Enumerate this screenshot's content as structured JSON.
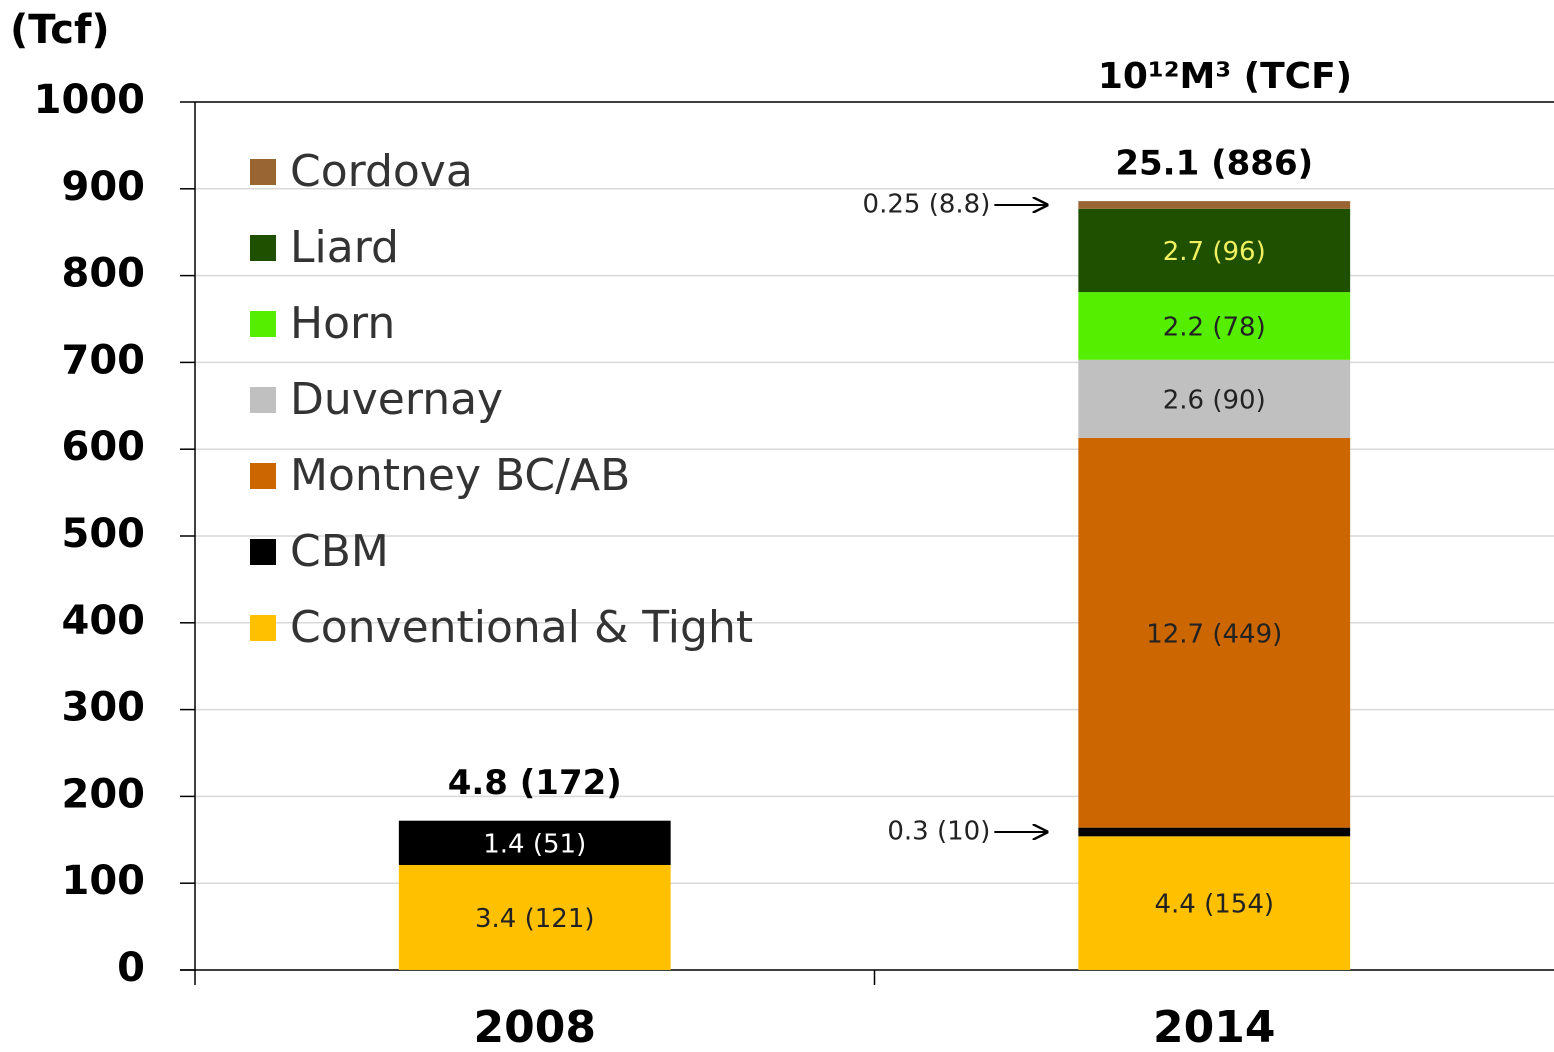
{
  "chart_data": {
    "type": "stacked_bar",
    "y_unit": "(Tcf)",
    "header": "10¹²M³ (TCF)",
    "categories": [
      "2008",
      "2014"
    ],
    "totals": [
      "4.8 (172)",
      "25.1 (886)"
    ],
    "series": [
      {
        "name": "Conventional & Tight",
        "color": "#ffc000",
        "label_color": "#222222",
        "values": [
          121,
          154
        ],
        "value_labels": [
          "3.4 (121)",
          "4.4 (154)"
        ]
      },
      {
        "name": "CBM",
        "color": "#000000",
        "label_color": "#ffffff",
        "values": [
          51,
          10
        ],
        "value_labels": [
          "1.4  (51)",
          "0.3 (10)"
        ]
      },
      {
        "name": "Montney BC/AB",
        "color": "#cc6600",
        "label_color": "#222222",
        "values": [
          null,
          449
        ],
        "value_labels": [
          null,
          "12.7 (449)"
        ]
      },
      {
        "name": "Duvernay",
        "color": "#c0c0c0",
        "label_color": "#222222",
        "values": [
          null,
          90
        ],
        "value_labels": [
          null,
          "2.6 (90)"
        ]
      },
      {
        "name": "Horn",
        "color": "#55ee00",
        "label_color": "#222222",
        "values": [
          null,
          78
        ],
        "value_labels": [
          null,
          "2.2 (78)"
        ]
      },
      {
        "name": "Liard",
        "color": "#1f5000",
        "label_color": "#f0f060",
        "values": [
          null,
          96
        ],
        "value_labels": [
          null,
          "2.7 (96)"
        ]
      },
      {
        "name": "Cordova",
        "color": "#996633",
        "label_color": "#222222",
        "values": [
          null,
          8.8
        ],
        "value_labels": [
          null,
          "0.25 (8.8)"
        ]
      }
    ],
    "ylim": [
      0,
      1000
    ],
    "yticks": [
      0,
      100,
      200,
      300,
      400,
      500,
      600,
      700,
      800,
      900,
      1000
    ],
    "grid": true
  }
}
